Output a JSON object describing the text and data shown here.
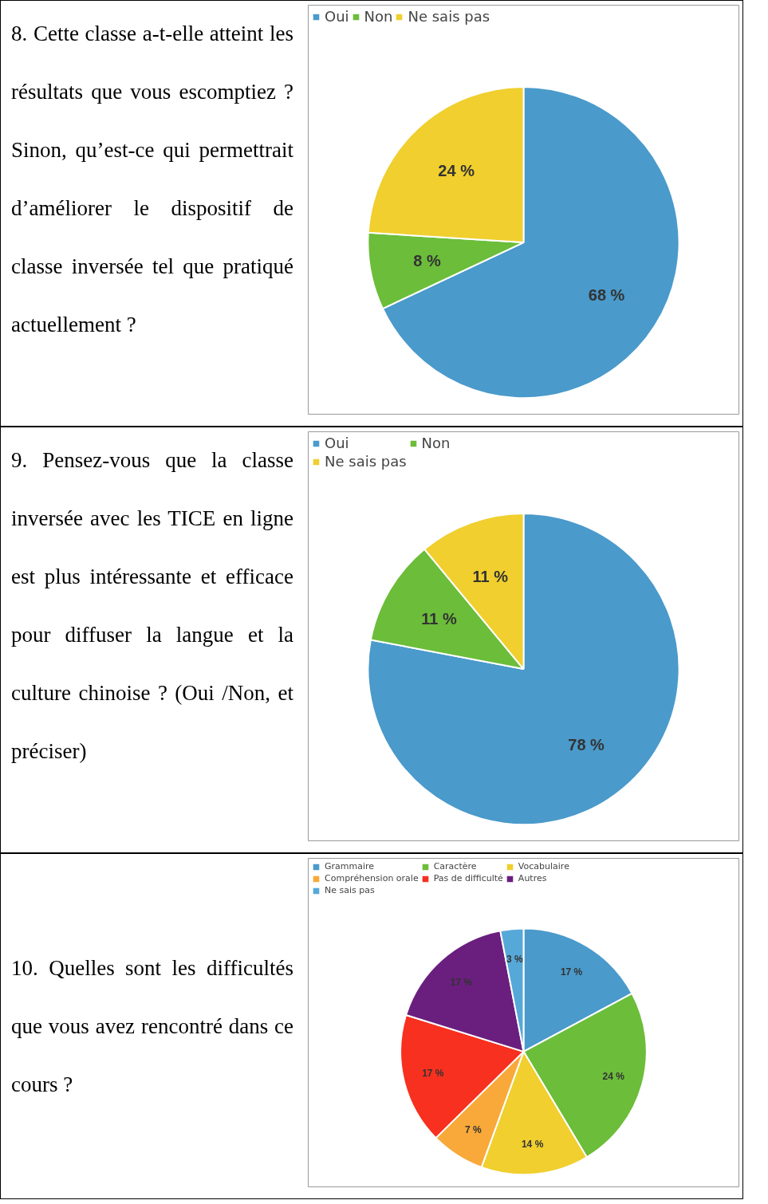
{
  "chart_data": [
    {
      "type": "pie",
      "title": "8. Cette classe a-t-elle atteint les résultats que vous escomptiez ? Sinon, qu’est-ce qui permettrait d’améliorer le dispositif de classe inversée tel que pratiqué actuellement ?",
      "categories": [
        "Oui",
        "Non",
        "Ne sais pas"
      ],
      "values": [
        68,
        8,
        24
      ],
      "colors": [
        "#4a9acb",
        "#6cbd3a",
        "#f0cf2e"
      ],
      "value_labels": [
        "68 %",
        "8 %",
        "24 %"
      ],
      "legend": "top"
    },
    {
      "type": "pie",
      "title": "9. Pensez-vous que la classe inversée avec les TICE en ligne est plus intéressante et efficace pour diffuser la langue et la culture chinoise ?  (Oui /Non, et préciser)",
      "categories": [
        "Oui",
        "Non",
        "Ne sais pas"
      ],
      "values": [
        78,
        11,
        11
      ],
      "colors": [
        "#4a9acb",
        "#6cbd3a",
        "#f0cf2e"
      ],
      "value_labels": [
        "78 %",
        "11 %",
        "11 %"
      ],
      "legend": "top"
    },
    {
      "type": "pie",
      "title": "10. Quelles sont les difficultés que vous avez rencontré dans ce cours ?",
      "categories": [
        "Grammaire",
        "Caractère",
        "Vocabulaire",
        "Compréhension orale",
        "Pas de difficulté",
        "Autres",
        "Ne sais pas"
      ],
      "values": [
        17,
        24,
        14,
        7,
        17,
        17,
        3
      ],
      "colors": [
        "#4a9acb",
        "#6cbd3a",
        "#f0cf2e",
        "#f8a93a",
        "#f7301f",
        "#6a1f7f",
        "#56a8d8"
      ],
      "value_labels": [
        "17 %",
        "24 %",
        "14 %",
        "7 %",
        "17 %",
        "17 %",
        "3 %"
      ],
      "legend": "top"
    }
  ]
}
